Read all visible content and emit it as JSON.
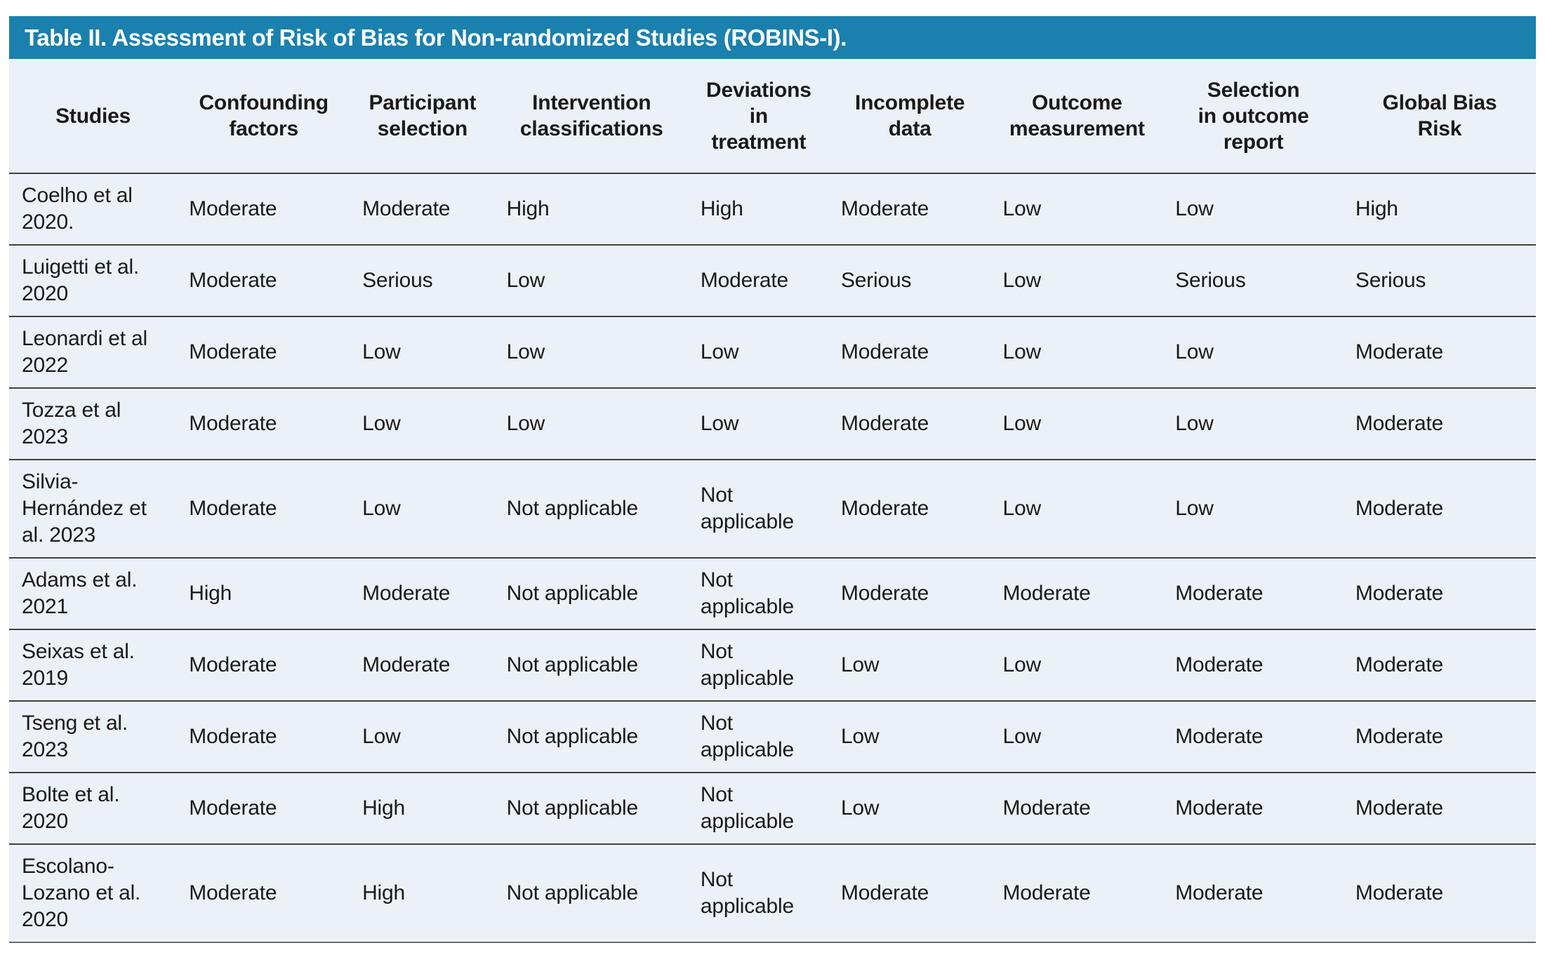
{
  "title": "Table II. Assessment of Risk of Bias for Non-randomized Studies (ROBINS-I).",
  "colors": {
    "title_bar_background": "#1a80ad",
    "title_text": "#ffffff",
    "table_background": "#ecf0f7",
    "row_divider": "#414141",
    "body_text": "#1a1a1a"
  },
  "table": {
    "columns": [
      "Studies",
      "Confounding\nfactors",
      "Participant\nselection",
      "Intervention\nclassifications",
      "Deviations\nin\ntreatment",
      "Incomplete\ndata",
      "Outcome\nmeasurement",
      "Selection\nin outcome\nreport",
      "Global Bias\nRisk"
    ],
    "rows": [
      {
        "study": "Coelho et al\n2020.",
        "values": [
          "Moderate",
          "Moderate",
          "High",
          "High",
          "Moderate",
          "Low",
          "Low",
          "High"
        ]
      },
      {
        "study": "Luigetti et al.\n2020",
        "values": [
          "Moderate",
          "Serious",
          "Low",
          "Moderate",
          "Serious",
          "Low",
          "Serious",
          "Serious"
        ]
      },
      {
        "study": "Leonardi et al\n2022",
        "values": [
          "Moderate",
          "Low",
          "Low",
          "Low",
          "Moderate",
          "Low",
          "Low",
          "Moderate"
        ]
      },
      {
        "study": "Tozza et al\n2023",
        "values": [
          "Moderate",
          "Low",
          "Low",
          "Low",
          "Moderate",
          "Low",
          "Low",
          "Moderate"
        ]
      },
      {
        "study": "Silvia-\nHernández et\nal. 2023",
        "values": [
          "Moderate",
          "Low",
          "Not applicable",
          "Not applicable",
          "Moderate",
          "Low",
          "Low",
          "Moderate"
        ]
      },
      {
        "study": "Adams et al.\n2021",
        "values": [
          "High",
          "Moderate",
          "Not applicable",
          "Not applicable",
          "Moderate",
          "Moderate",
          "Moderate",
          "Moderate"
        ]
      },
      {
        "study": "Seixas et al.\n2019",
        "values": [
          "Moderate",
          "Moderate",
          "Not applicable",
          "Not applicable",
          "Low",
          "Low",
          "Moderate",
          "Moderate"
        ]
      },
      {
        "study": "Tseng et al.\n2023",
        "values": [
          "Moderate",
          "Low",
          "Not applicable",
          "Not applicable",
          "Low",
          "Low",
          "Moderate",
          "Moderate"
        ]
      },
      {
        "study": "Bolte et al.\n2020",
        "values": [
          "Moderate",
          "High",
          "Not applicable",
          "Not applicable",
          "Low",
          "Moderate",
          "Moderate",
          "Moderate"
        ]
      },
      {
        "study": "Escolano-\nLozano et al.\n2020",
        "values": [
          "Moderate",
          "High",
          "Not applicable",
          "Not applicable",
          "Moderate",
          "Moderate",
          "Moderate",
          "Moderate"
        ]
      }
    ]
  }
}
